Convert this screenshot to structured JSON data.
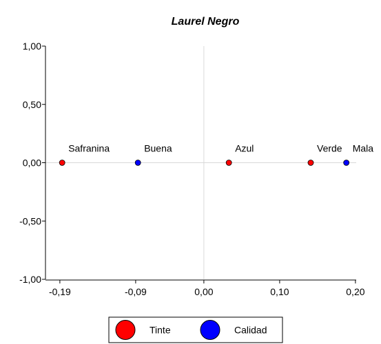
{
  "chart_data": {
    "type": "scatter",
    "title": "Laurel Negro",
    "xlabel": "",
    "ylabel": "",
    "xlim": [
      -0.209,
      0.201
    ],
    "ylim": [
      -1.0,
      1.0
    ],
    "x_ticks": [
      {
        "value": -0.19,
        "label": "-0,19"
      },
      {
        "value": -0.09,
        "label": "-0,09"
      },
      {
        "value": 0.0,
        "label": "0,00"
      },
      {
        "value": 0.1,
        "label": "0,10"
      },
      {
        "value": 0.2,
        "label": "0,20"
      }
    ],
    "y_ticks": [
      {
        "value": 1.0,
        "label": "1,00"
      },
      {
        "value": 0.5,
        "label": "0,50"
      },
      {
        "value": 0.0,
        "label": "0,00"
      },
      {
        "value": -0.5,
        "label": "-0,50"
      },
      {
        "value": -1.0,
        "label": "-1,00"
      }
    ],
    "grid": "zero lines only",
    "legend_position": "bottom-center",
    "series": [
      {
        "name": "Tinte",
        "color": "#ff0000",
        "points": [
          {
            "label": "Safranina",
            "x": -0.187,
            "y": 0.0
          },
          {
            "label": "Azul",
            "x": 0.033,
            "y": 0.0
          },
          {
            "label": "Verde",
            "x": 0.141,
            "y": 0.0
          }
        ]
      },
      {
        "name": "Calidad",
        "color": "#0000ff",
        "points": [
          {
            "label": "Buena",
            "x": -0.087,
            "y": 0.0
          },
          {
            "label": "Mala",
            "x": 0.188,
            "y": 0.0
          }
        ]
      }
    ]
  }
}
